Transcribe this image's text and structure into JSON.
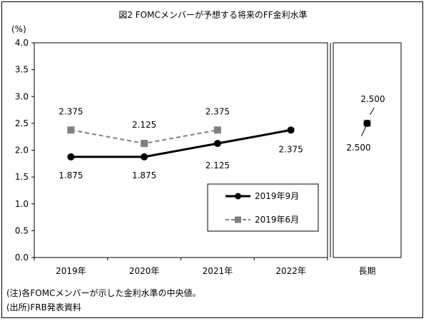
{
  "chart_data": {
    "type": "line",
    "title": "図2 FOMCメンバーが予想する将来のFF金利水準",
    "ylabel": "(%)",
    "ylim": [
      0,
      4.0
    ],
    "yticks": [
      "0.0",
      "0.5",
      "1.0",
      "1.5",
      "2.0",
      "2.5",
      "3.0",
      "3.5",
      "4.0"
    ],
    "categories": [
      "2019年",
      "2020年",
      "2021年",
      "2022年"
    ],
    "long_run_category": "長期",
    "grid": false,
    "legend_position": "lower-right",
    "series": [
      {
        "name": "2019年9月",
        "color": "#000000",
        "marker": "circle",
        "values": [
          1.875,
          1.875,
          2.125,
          2.375
        ],
        "labels": [
          "1.875",
          "1.875",
          "2.125",
          "2.375"
        ],
        "long_run": 2.5,
        "long_run_label": "2.500"
      },
      {
        "name": "2019年6月",
        "color": "#808080",
        "marker": "square",
        "dashed": true,
        "values": [
          2.375,
          2.125,
          2.375,
          null
        ],
        "labels": [
          "2.375",
          "2.125",
          "2.375",
          ""
        ],
        "long_run": 2.5,
        "long_run_label": "2.500"
      }
    ]
  },
  "notes": {
    "note": "(注)各FOMCメンバーが示した金利水準の中央値。",
    "source": "(出所)FRB発表資料"
  }
}
